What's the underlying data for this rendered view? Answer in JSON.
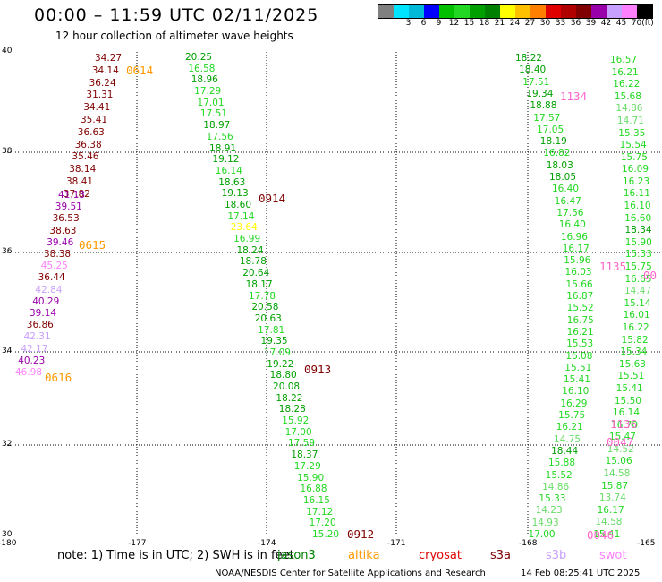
{
  "header": {
    "title": "00:00 – 11:59 UTC 02/11/2025",
    "subtitle": "12 hour collection of altimeter wave heights"
  },
  "scale": {
    "unit_label": "(ft)",
    "bins": [
      {
        "color": "#808080",
        "label": ""
      },
      {
        "color": "#00e5ff",
        "label": "3"
      },
      {
        "color": "#00b8d8",
        "label": "6"
      },
      {
        "color": "#0000ff",
        "label": "9"
      },
      {
        "color": "#00c000",
        "label": "12"
      },
      {
        "color": "#22d822",
        "label": "15"
      },
      {
        "color": "#00a000",
        "label": "18"
      },
      {
        "color": "#008000",
        "label": "21"
      },
      {
        "color": "#ffff00",
        "label": "24"
      },
      {
        "color": "#ffc000",
        "label": "27"
      },
      {
        "color": "#ff8000",
        "label": "30"
      },
      {
        "color": "#e00000",
        "label": "33"
      },
      {
        "color": "#b00000",
        "label": "36"
      },
      {
        "color": "#800000",
        "label": "39"
      },
      {
        "color": "#9900aa",
        "label": "42"
      },
      {
        "color": "#c8a0ff",
        "label": "45"
      },
      {
        "color": "#ff80ff",
        "label": "70"
      },
      {
        "color": "#000000",
        "label": ""
      }
    ]
  },
  "axes": {
    "lat_ticks": [
      "40",
      "38",
      "36",
      "34",
      "32",
      "30"
    ],
    "lon_ticks": [
      "-180",
      "-177",
      "-174",
      "-171",
      "-168",
      "-165"
    ]
  },
  "passes": [
    {
      "label": "0614",
      "color": "#ff9900"
    },
    {
      "label": "0615",
      "color": "#ff9900"
    },
    {
      "label": "0616",
      "color": "#ff9900"
    },
    {
      "label": "0914",
      "color": "#800000"
    },
    {
      "label": "0913",
      "color": "#800000"
    },
    {
      "label": "0912",
      "color": "#800000"
    },
    {
      "label": "1134",
      "color": "#ff66cc"
    },
    {
      "label": "1135",
      "color": "#ff66cc"
    },
    {
      "label": "1136",
      "color": "#ff66cc"
    },
    {
      "label": "0047",
      "color": "#ff66cc"
    },
    {
      "label": "0046",
      "color": "#ff66cc"
    },
    {
      "label": "00",
      "color": "#ff66cc"
    }
  ],
  "tracks": [
    {
      "name": "altika-track",
      "color": "#800000",
      "values": [
        "34.27",
        "34.14",
        "36.24",
        "31.31",
        "34.41",
        "35.41",
        "36.63",
        "36.38",
        "35.46",
        "38.14",
        "38.41",
        "37.82"
      ]
    },
    {
      "name": "altika-track-purple",
      "values": [
        {
          "v": "41.13",
          "c": "#9900aa"
        },
        {
          "v": "39.51",
          "c": "#9900aa"
        },
        {
          "v": "36.53",
          "c": "#800000"
        },
        {
          "v": "38.63",
          "c": "#800000"
        },
        {
          "v": "39.46",
          "c": "#9900aa"
        },
        {
          "v": "38.38",
          "c": "#800000"
        },
        {
          "v": "45.25",
          "c": "#ff80ff"
        },
        {
          "v": "36.44",
          "c": "#800000"
        },
        {
          "v": "42.84",
          "c": "#c8a0ff"
        },
        {
          "v": "40.29",
          "c": "#9900aa"
        },
        {
          "v": "39.14",
          "c": "#9900aa"
        },
        {
          "v": "36.86",
          "c": "#800000"
        },
        {
          "v": "42.31",
          "c": "#c8a0ff"
        },
        {
          "v": "42.17",
          "c": "#c8a0ff"
        },
        {
          "v": "40.23",
          "c": "#9900aa"
        },
        {
          "v": "46.98",
          "c": "#ff80ff"
        }
      ]
    },
    {
      "name": "s3a-track",
      "values": [
        {
          "v": "20.25",
          "c": "#00a000"
        },
        {
          "v": "16.58",
          "c": "#22d822"
        },
        {
          "v": "18.96",
          "c": "#00a000"
        },
        {
          "v": "17.29",
          "c": "#22d822"
        },
        {
          "v": "17.01",
          "c": "#22d822"
        },
        {
          "v": "17.51",
          "c": "#22d822"
        },
        {
          "v": "18.97",
          "c": "#00a000"
        },
        {
          "v": "17.56",
          "c": "#22d822"
        },
        {
          "v": "18.91",
          "c": "#00a000"
        },
        {
          "v": "19.12",
          "c": "#00a000"
        },
        {
          "v": "16.14",
          "c": "#22d822"
        },
        {
          "v": "18.63",
          "c": "#00a000"
        },
        {
          "v": "19.13",
          "c": "#00a000"
        },
        {
          "v": "18.60",
          "c": "#00a000"
        },
        {
          "v": "17.14",
          "c": "#22d822"
        },
        {
          "v": "23.64",
          "c": "#ffff00"
        },
        {
          "v": "16.99",
          "c": "#22d822"
        },
        {
          "v": "18.24",
          "c": "#00a000"
        },
        {
          "v": "18.78",
          "c": "#00a000"
        },
        {
          "v": "20.64",
          "c": "#00a000"
        },
        {
          "v": "18.17",
          "c": "#00a000"
        },
        {
          "v": "17.78",
          "c": "#22d822"
        },
        {
          "v": "20.58",
          "c": "#00a000"
        },
        {
          "v": "20.63",
          "c": "#00a000"
        },
        {
          "v": "17.81",
          "c": "#22d822"
        },
        {
          "v": "19.35",
          "c": "#00a000"
        },
        {
          "v": "17.09",
          "c": "#22d822"
        },
        {
          "v": "19.22",
          "c": "#00a000"
        },
        {
          "v": "18.80",
          "c": "#00a000"
        },
        {
          "v": "20.08",
          "c": "#00a000"
        },
        {
          "v": "18.22",
          "c": "#00a000"
        },
        {
          "v": "18.28",
          "c": "#00a000"
        },
        {
          "v": "15.92",
          "c": "#22d822"
        },
        {
          "v": "17.00",
          "c": "#22d822"
        },
        {
          "v": "17.59",
          "c": "#22d822"
        },
        {
          "v": "18.37",
          "c": "#00a000"
        },
        {
          "v": "17.29",
          "c": "#22d822"
        },
        {
          "v": "15.90",
          "c": "#22d822"
        },
        {
          "v": "16.88",
          "c": "#22d822"
        },
        {
          "v": "16.15",
          "c": "#22d822"
        },
        {
          "v": "17.12",
          "c": "#22d822"
        },
        {
          "v": "17.20",
          "c": "#22d822"
        },
        {
          "v": "15.20",
          "c": "#22d822"
        }
      ]
    },
    {
      "name": "east-track-1",
      "values": [
        {
          "v": "18.22",
          "c": "#00a000"
        },
        {
          "v": "18.40",
          "c": "#00a000"
        },
        {
          "v": "17.51",
          "c": "#22d822"
        },
        {
          "v": "19.34",
          "c": "#00a000"
        },
        {
          "v": "18.88",
          "c": "#00a000"
        },
        {
          "v": "17.57",
          "c": "#22d822"
        },
        {
          "v": "17.05",
          "c": "#22d822"
        },
        {
          "v": "18.19",
          "c": "#00a000"
        },
        {
          "v": "16.82",
          "c": "#22d822"
        },
        {
          "v": "18.03",
          "c": "#00a000"
        },
        {
          "v": "18.05",
          "c": "#00a000"
        },
        {
          "v": "16.40",
          "c": "#22d822"
        },
        {
          "v": "16.47",
          "c": "#22d822"
        },
        {
          "v": "17.56",
          "c": "#22d822"
        },
        {
          "v": "16.40",
          "c": "#22d822"
        },
        {
          "v": "16.96",
          "c": "#22d822"
        },
        {
          "v": "16.17",
          "c": "#22d822"
        },
        {
          "v": "15.96",
          "c": "#22d822"
        },
        {
          "v": "16.03",
          "c": "#22d822"
        },
        {
          "v": "15.66",
          "c": "#22d822"
        },
        {
          "v": "16.87",
          "c": "#22d822"
        },
        {
          "v": "15.52",
          "c": "#22d822"
        },
        {
          "v": "16.75",
          "c": "#22d822"
        },
        {
          "v": "16.21",
          "c": "#22d822"
        },
        {
          "v": "15.53",
          "c": "#22d822"
        },
        {
          "v": "16.08",
          "c": "#22d822"
        },
        {
          "v": "15.51",
          "c": "#22d822"
        },
        {
          "v": "15.41",
          "c": "#22d822"
        },
        {
          "v": "16.10",
          "c": "#22d822"
        },
        {
          "v": "16.29",
          "c": "#22d822"
        },
        {
          "v": "15.75",
          "c": "#22d822"
        },
        {
          "v": "16.21",
          "c": "#22d822"
        },
        {
          "v": "14.75",
          "c": "#66dd66"
        },
        {
          "v": "18.44",
          "c": "#00a000"
        },
        {
          "v": "15.88",
          "c": "#22d822"
        },
        {
          "v": "15.52",
          "c": "#22d822"
        },
        {
          "v": "14.86",
          "c": "#66dd66"
        },
        {
          "v": "15.33",
          "c": "#22d822"
        },
        {
          "v": "14.23",
          "c": "#66dd66"
        },
        {
          "v": "14.93",
          "c": "#66dd66"
        },
        {
          "v": "17.00",
          "c": "#22d822"
        }
      ]
    },
    {
      "name": "east-track-2",
      "values": [
        {
          "v": "16.57",
          "c": "#22d822"
        },
        {
          "v": "16.21",
          "c": "#22d822"
        },
        {
          "v": "16.22",
          "c": "#22d822"
        },
        {
          "v": "15.68",
          "c": "#22d822"
        },
        {
          "v": "14.86",
          "c": "#66dd66"
        },
        {
          "v": "14.71",
          "c": "#66dd66"
        },
        {
          "v": "15.35",
          "c": "#22d822"
        },
        {
          "v": "15.54",
          "c": "#22d822"
        },
        {
          "v": "15.75",
          "c": "#22d822"
        },
        {
          "v": "16.09",
          "c": "#22d822"
        },
        {
          "v": "16.23",
          "c": "#22d822"
        },
        {
          "v": "16.11",
          "c": "#22d822"
        },
        {
          "v": "16.10",
          "c": "#22d822"
        },
        {
          "v": "16.60",
          "c": "#22d822"
        },
        {
          "v": "18.34",
          "c": "#00a000"
        },
        {
          "v": "15.90",
          "c": "#22d822"
        },
        {
          "v": "15.33",
          "c": "#22d822"
        },
        {
          "v": "15.75",
          "c": "#22d822"
        },
        {
          "v": "16.65",
          "c": "#22d822"
        },
        {
          "v": "14.47",
          "c": "#66dd66"
        },
        {
          "v": "15.14",
          "c": "#22d822"
        },
        {
          "v": "16.01",
          "c": "#22d822"
        },
        {
          "v": "16.22",
          "c": "#22d822"
        },
        {
          "v": "15.82",
          "c": "#22d822"
        },
        {
          "v": "15.34",
          "c": "#22d822"
        },
        {
          "v": "15.63",
          "c": "#22d822"
        },
        {
          "v": "15.51",
          "c": "#22d822"
        },
        {
          "v": "15.41",
          "c": "#22d822"
        },
        {
          "v": "15.50",
          "c": "#22d822"
        },
        {
          "v": "16.14",
          "c": "#22d822"
        },
        {
          "v": "16.70",
          "c": "#22d822"
        },
        {
          "v": "15.47",
          "c": "#22d822"
        },
        {
          "v": "14.52",
          "c": "#66dd66"
        },
        {
          "v": "15.06",
          "c": "#22d822"
        },
        {
          "v": "14.58",
          "c": "#66dd66"
        },
        {
          "v": "15.87",
          "c": "#22d822"
        },
        {
          "v": "13.74",
          "c": "#66dd66"
        },
        {
          "v": "16.17",
          "c": "#22d822"
        },
        {
          "v": "14.58",
          "c": "#66dd66"
        },
        {
          "v": "15.41",
          "c": "#22d822"
        }
      ]
    }
  ],
  "footer": {
    "note": "note: 1) Time is in UTC; 2) SWH is in feet",
    "legend": [
      {
        "name": "jason3",
        "label": "jason3",
        "color": "#008000"
      },
      {
        "name": "altika",
        "label": "altika",
        "color": "#ff9900"
      },
      {
        "name": "cryosat",
        "label": "cryosat",
        "color": "#e00000"
      },
      {
        "name": "s3a",
        "label": "s3a",
        "color": "#800000"
      },
      {
        "name": "s3b",
        "label": "s3b",
        "color": "#c8a0ff"
      },
      {
        "name": "swot",
        "label": "swot",
        "color": "#ff80ff"
      }
    ],
    "credit": "NOAA/NESDIS Center for Satellite Applications and Research",
    "timestamp": "14 Feb 08:25:41 UTC 2025"
  }
}
